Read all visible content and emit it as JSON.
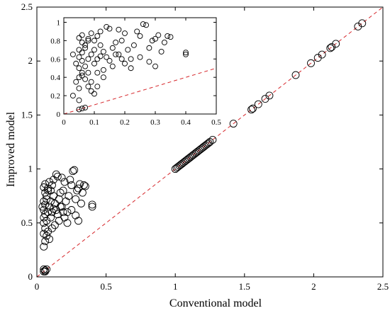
{
  "chart_data": [
    {
      "type": "scatter",
      "role": "main",
      "xlabel": "Conventional model",
      "ylabel": "Improved model",
      "xlim": [
        0,
        2.5
      ],
      "ylim": [
        0,
        2.5
      ],
      "xticks": [
        "0",
        "0.5",
        "1",
        "1.5",
        "2",
        "2.5"
      ],
      "yticks": [
        "0",
        "0.5",
        "1",
        "1.5",
        "2",
        "2.5"
      ],
      "reference_line": {
        "type": "y=x",
        "color": "#d6272b",
        "style": "dashed"
      },
      "marker": "open circle",
      "points": [
        [
          0.05,
          0.05
        ],
        [
          0.06,
          0.06
        ],
        [
          0.07,
          0.07
        ],
        [
          0.05,
          0.07
        ],
        [
          0.06,
          0.05
        ],
        [
          0.05,
          0.28
        ],
        [
          0.06,
          0.33
        ],
        [
          0.05,
          0.4
        ],
        [
          0.07,
          0.38
        ],
        [
          0.06,
          0.45
        ],
        [
          0.08,
          0.42
        ],
        [
          0.05,
          0.5
        ],
        [
          0.07,
          0.52
        ],
        [
          0.05,
          0.55
        ],
        [
          0.06,
          0.58
        ],
        [
          0.08,
          0.6
        ],
        [
          0.05,
          0.62
        ],
        [
          0.04,
          0.65
        ],
        [
          0.06,
          0.67
        ],
        [
          0.05,
          0.7
        ],
        [
          0.07,
          0.72
        ],
        [
          0.06,
          0.78
        ],
        [
          0.08,
          0.8
        ],
        [
          0.05,
          0.83
        ],
        [
          0.06,
          0.86
        ],
        [
          0.09,
          0.88
        ],
        [
          0.08,
          0.82
        ],
        [
          0.07,
          0.75
        ],
        [
          0.09,
          0.65
        ],
        [
          0.1,
          0.7
        ],
        [
          0.1,
          0.55
        ],
        [
          0.11,
          0.6
        ],
        [
          0.12,
          0.63
        ],
        [
          0.1,
          0.8
        ],
        [
          0.11,
          0.85
        ],
        [
          0.12,
          0.75
        ],
        [
          0.13,
          0.68
        ],
        [
          0.14,
          0.62
        ],
        [
          0.15,
          0.58
        ],
        [
          0.16,
          0.72
        ],
        [
          0.17,
          0.78
        ],
        [
          0.18,
          0.65
        ],
        [
          0.19,
          0.8
        ],
        [
          0.2,
          0.88
        ],
        [
          0.21,
          0.7
        ],
        [
          0.22,
          0.6
        ],
        [
          0.23,
          0.75
        ],
        [
          0.24,
          0.9
        ],
        [
          0.25,
          0.85
        ],
        [
          0.26,
          0.98
        ],
        [
          0.27,
          0.99
        ],
        [
          0.28,
          0.72
        ],
        [
          0.29,
          0.8
        ],
        [
          0.3,
          0.82
        ],
        [
          0.31,
          0.86
        ],
        [
          0.32,
          0.68
        ],
        [
          0.33,
          0.78
        ],
        [
          0.34,
          0.85
        ],
        [
          0.35,
          0.84
        ],
        [
          0.4,
          0.65
        ],
        [
          0.4,
          0.67
        ],
        [
          0.12,
          0.9
        ],
        [
          0.14,
          0.95
        ],
        [
          0.15,
          0.93
        ],
        [
          0.18,
          0.92
        ],
        [
          0.2,
          0.55
        ],
        [
          0.16,
          0.52
        ],
        [
          0.13,
          0.48
        ],
        [
          0.11,
          0.45
        ],
        [
          0.09,
          0.35
        ],
        [
          0.22,
          0.5
        ],
        [
          0.25,
          0.62
        ],
        [
          0.28,
          0.57
        ],
        [
          0.3,
          0.52
        ],
        [
          0.17,
          0.65
        ],
        [
          0.19,
          0.6
        ],
        [
          1.0,
          1.0
        ],
        [
          1.01,
          1.01
        ],
        [
          1.02,
          1.02
        ],
        [
          1.03,
          1.03
        ],
        [
          1.04,
          1.04
        ],
        [
          1.05,
          1.05
        ],
        [
          1.06,
          1.06
        ],
        [
          1.07,
          1.07
        ],
        [
          1.08,
          1.08
        ],
        [
          1.09,
          1.09
        ],
        [
          1.1,
          1.1
        ],
        [
          1.11,
          1.11
        ],
        [
          1.12,
          1.12
        ],
        [
          1.13,
          1.13
        ],
        [
          1.14,
          1.14
        ],
        [
          1.15,
          1.15
        ],
        [
          1.16,
          1.16
        ],
        [
          1.17,
          1.17
        ],
        [
          1.18,
          1.18
        ],
        [
          1.19,
          1.19
        ],
        [
          1.2,
          1.2
        ],
        [
          1.21,
          1.21
        ],
        [
          1.22,
          1.22
        ],
        [
          1.23,
          1.23
        ],
        [
          1.24,
          1.24
        ],
        [
          1.25,
          1.25
        ],
        [
          1.27,
          1.27
        ],
        [
          1.42,
          1.42
        ],
        [
          1.55,
          1.55
        ],
        [
          1.56,
          1.56
        ],
        [
          1.6,
          1.6
        ],
        [
          1.65,
          1.65
        ],
        [
          1.68,
          1.68
        ],
        [
          1.87,
          1.87
        ],
        [
          1.98,
          1.98
        ],
        [
          2.03,
          2.03
        ],
        [
          2.06,
          2.06
        ],
        [
          2.12,
          2.12
        ],
        [
          2.13,
          2.13
        ],
        [
          2.16,
          2.16
        ],
        [
          2.32,
          2.32
        ],
        [
          2.35,
          2.35
        ]
      ]
    },
    {
      "type": "scatter",
      "role": "inset",
      "xlim": [
        0,
        0.5
      ],
      "ylim": [
        0,
        1.05
      ],
      "xticks": [
        "0",
        "0.1",
        "0.2",
        "0.3",
        "0.4",
        "0.5"
      ],
      "yticks": [
        "0",
        "0.2",
        "0.4",
        "0.6",
        "0.8",
        "1"
      ],
      "reference_line": {
        "type": "y=x",
        "color": "#d6272b",
        "style": "dashed"
      },
      "marker": "open circle",
      "points": [
        [
          0.05,
          0.05
        ],
        [
          0.06,
          0.06
        ],
        [
          0.07,
          0.07
        ],
        [
          0.05,
          0.15
        ],
        [
          0.03,
          0.2
        ],
        [
          0.04,
          0.35
        ],
        [
          0.05,
          0.28
        ],
        [
          0.05,
          0.4
        ],
        [
          0.06,
          0.42
        ],
        [
          0.07,
          0.38
        ],
        [
          0.06,
          0.45
        ],
        [
          0.08,
          0.3
        ],
        [
          0.05,
          0.5
        ],
        [
          0.07,
          0.52
        ],
        [
          0.04,
          0.55
        ],
        [
          0.06,
          0.58
        ],
        [
          0.08,
          0.6
        ],
        [
          0.05,
          0.62
        ],
        [
          0.03,
          0.65
        ],
        [
          0.06,
          0.67
        ],
        [
          0.05,
          0.7
        ],
        [
          0.07,
          0.72
        ],
        [
          0.06,
          0.78
        ],
        [
          0.08,
          0.8
        ],
        [
          0.05,
          0.83
        ],
        [
          0.06,
          0.86
        ],
        [
          0.09,
          0.88
        ],
        [
          0.08,
          0.82
        ],
        [
          0.07,
          0.75
        ],
        [
          0.09,
          0.65
        ],
        [
          0.1,
          0.7
        ],
        [
          0.1,
          0.55
        ],
        [
          0.11,
          0.6
        ],
        [
          0.12,
          0.63
        ],
        [
          0.1,
          0.8
        ],
        [
          0.11,
          0.85
        ],
        [
          0.12,
          0.75
        ],
        [
          0.13,
          0.68
        ],
        [
          0.14,
          0.62
        ],
        [
          0.15,
          0.58
        ],
        [
          0.16,
          0.72
        ],
        [
          0.17,
          0.78
        ],
        [
          0.18,
          0.65
        ],
        [
          0.19,
          0.8
        ],
        [
          0.2,
          0.88
        ],
        [
          0.21,
          0.7
        ],
        [
          0.22,
          0.6
        ],
        [
          0.23,
          0.75
        ],
        [
          0.24,
          0.9
        ],
        [
          0.25,
          0.85
        ],
        [
          0.26,
          0.98
        ],
        [
          0.27,
          0.97
        ],
        [
          0.28,
          0.72
        ],
        [
          0.29,
          0.8
        ],
        [
          0.3,
          0.82
        ],
        [
          0.31,
          0.86
        ],
        [
          0.32,
          0.68
        ],
        [
          0.33,
          0.78
        ],
        [
          0.34,
          0.85
        ],
        [
          0.35,
          0.84
        ],
        [
          0.4,
          0.65
        ],
        [
          0.4,
          0.67
        ],
        [
          0.12,
          0.9
        ],
        [
          0.14,
          0.95
        ],
        [
          0.15,
          0.93
        ],
        [
          0.18,
          0.92
        ],
        [
          0.2,
          0.55
        ],
        [
          0.16,
          0.52
        ],
        [
          0.13,
          0.48
        ],
        [
          0.11,
          0.45
        ],
        [
          0.09,
          0.35
        ],
        [
          0.22,
          0.5
        ],
        [
          0.25,
          0.62
        ],
        [
          0.28,
          0.57
        ],
        [
          0.3,
          0.52
        ],
        [
          0.17,
          0.65
        ],
        [
          0.19,
          0.6
        ],
        [
          0.09,
          0.25
        ],
        [
          0.1,
          0.22
        ],
        [
          0.08,
          0.45
        ],
        [
          0.13,
          0.4
        ],
        [
          0.11,
          0.3
        ]
      ]
    }
  ]
}
